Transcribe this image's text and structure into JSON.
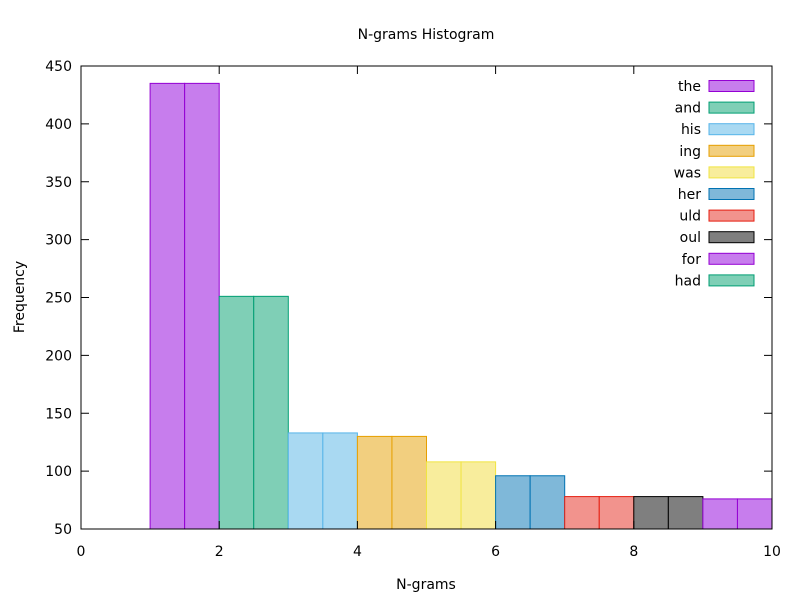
{
  "chart_data": {
    "type": "bar",
    "title": "N-grams Histogram",
    "xlabel": "N-grams",
    "ylabel": "Frequency",
    "xlim": [
      0,
      10
    ],
    "ylim": [
      50,
      450
    ],
    "xticks": [
      0,
      2,
      4,
      6,
      8,
      10
    ],
    "yticks": [
      50,
      100,
      150,
      200,
      250,
      300,
      350,
      400,
      450
    ],
    "grid": false,
    "legend_position": "top-right",
    "series": [
      {
        "name": "the",
        "x": [
          1,
          2
        ],
        "value": 435,
        "color": "#c77ded",
        "edge": "#9400d3"
      },
      {
        "name": "and",
        "x": [
          2,
          3
        ],
        "value": 251,
        "color": "#7fcfb6",
        "edge": "#009e73"
      },
      {
        "name": "his",
        "x": [
          3,
          4
        ],
        "value": 133,
        "color": "#a9d9f2",
        "edge": "#56b4e9"
      },
      {
        "name": "ing",
        "x": [
          4,
          5
        ],
        "value": 130,
        "color": "#f2cf7f",
        "edge": "#e69f00"
      },
      {
        "name": "was",
        "x": [
          5,
          6
        ],
        "value": 108,
        "color": "#f8ed9c",
        "edge": "#f0e442"
      },
      {
        "name": "her",
        "x": [
          6,
          7
        ],
        "value": 96,
        "color": "#7fb8d9",
        "edge": "#0072b2"
      },
      {
        "name": "uld",
        "x": [
          7,
          8
        ],
        "value": 78,
        "color": "#f2938d",
        "edge": "#e51e10"
      },
      {
        "name": "oul",
        "x": [
          8,
          9
        ],
        "value": 78,
        "color": "#7f7f7f",
        "edge": "#000000"
      },
      {
        "name": "for",
        "x": [
          9,
          10
        ],
        "value": 76,
        "color": "#c77ded",
        "edge": "#9400d3"
      },
      {
        "name": "had",
        "x": [
          10,
          11
        ],
        "value": null,
        "color": "#7fcfb6",
        "edge": "#009e73"
      }
    ]
  }
}
